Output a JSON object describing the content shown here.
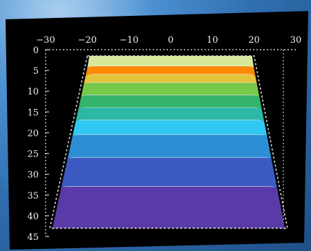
{
  "chart_data": {
    "type": "heatmap",
    "title": "",
    "xlabel": "",
    "ylabel": "",
    "x_ticks": [
      -30,
      -20,
      -10,
      0,
      10,
      20,
      30
    ],
    "y_ticks": [
      0,
      5,
      10,
      15,
      20,
      25,
      30,
      35,
      40,
      45
    ],
    "xlim": [
      -30,
      30
    ],
    "ylim": [
      45,
      0
    ],
    "background": "#000000",
    "grid": false,
    "outline": {
      "top_depth": 1.5,
      "bottom_depth": 43,
      "top_x": [
        -20,
        20
      ],
      "bottom_x": [
        -29,
        28
      ]
    },
    "contour_bands": [
      {
        "from_depth": 1.5,
        "to_depth": 4,
        "color": "#d8e89a"
      },
      {
        "from_depth": 4,
        "to_depth": 6,
        "color": "#ff8a00"
      },
      {
        "from_depth": 6,
        "to_depth": 8,
        "color": "#e4c43a"
      },
      {
        "from_depth": 8,
        "to_depth": 11,
        "color": "#78c84a"
      },
      {
        "from_depth": 11,
        "to_depth": 14,
        "color": "#35b36a"
      },
      {
        "from_depth": 14,
        "to_depth": 17,
        "color": "#2bb8a6"
      },
      {
        "from_depth": 17,
        "to_depth": 20.5,
        "color": "#2ec8f0"
      },
      {
        "from_depth": 20.5,
        "to_depth": 26,
        "color": "#2c8fd6"
      },
      {
        "from_depth": 26,
        "to_depth": 33,
        "color": "#3c5bc2"
      },
      {
        "from_depth": 33,
        "to_depth": 43,
        "color": "#5a3aa6"
      }
    ]
  }
}
